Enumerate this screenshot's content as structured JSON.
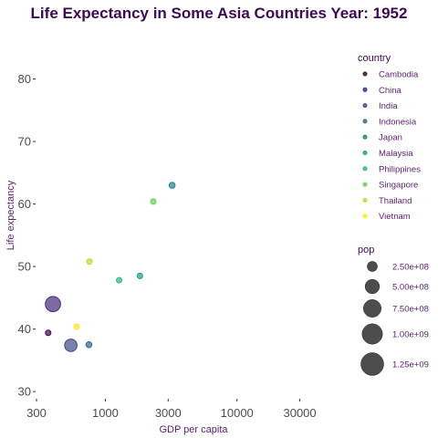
{
  "chart_data": {
    "type": "scatter",
    "title": "Life Expectancy in Some Asia Countries Year: 1952",
    "xlabel": "GDP per capita",
    "ylabel": "Life expectancy",
    "x_scale": "log10",
    "xlim": [
      300,
      60000
    ],
    "ylim": [
      29,
      83
    ],
    "x_ticks": [
      300,
      1000,
      3000,
      10000,
      30000
    ],
    "x_tick_labels": [
      "300",
      "1000",
      "3000",
      "10000",
      "30000"
    ],
    "y_ticks": [
      30,
      40,
      50,
      60,
      70,
      80
    ],
    "y_tick_labels": [
      "30",
      "40",
      "50",
      "60",
      "70",
      "80"
    ],
    "grid": false,
    "legend_placement": "right",
    "color_legend": {
      "title": "country",
      "entries": [
        {
          "name": "Cambodia",
          "color": "#440154"
        },
        {
          "name": "China",
          "color": "#482878"
        },
        {
          "name": "India",
          "color": "#3e4a89"
        },
        {
          "name": "Indonesia",
          "color": "#31688e"
        },
        {
          "name": "Japan",
          "color": "#26828e"
        },
        {
          "name": "Malaysia",
          "color": "#1f9e89"
        },
        {
          "name": "Philippines",
          "color": "#35b779"
        },
        {
          "name": "Singapore",
          "color": "#6ece58"
        },
        {
          "name": "Thailand",
          "color": "#b5de2b"
        },
        {
          "name": "Vietnam",
          "color": "#fde725"
        }
      ]
    },
    "size_legend": {
      "title": "pop",
      "entries": [
        {
          "value": 250000000,
          "label": "2.50e+08"
        },
        {
          "value": 500000000,
          "label": "5.00e+08"
        },
        {
          "value": 750000000,
          "label": "7.50e+08"
        },
        {
          "value": 1000000000,
          "label": "1.00e+09"
        },
        {
          "value": 1250000000,
          "label": "1.25e+09"
        }
      ]
    },
    "points": [
      {
        "country": "Cambodia",
        "gdp": 368,
        "life": 39.4,
        "pop": 4690000
      },
      {
        "country": "China",
        "gdp": 400,
        "life": 44.0,
        "pop": 556000000
      },
      {
        "country": "India",
        "gdp": 547,
        "life": 37.4,
        "pop": 372000000
      },
      {
        "country": "Indonesia",
        "gdp": 750,
        "life": 37.5,
        "pop": 82000000
      },
      {
        "country": "Japan",
        "gdp": 3217,
        "life": 63.0,
        "pop": 86000000
      },
      {
        "country": "Malaysia",
        "gdp": 1831,
        "life": 48.5,
        "pop": 6750000
      },
      {
        "country": "Philippines",
        "gdp": 1273,
        "life": 47.8,
        "pop": 22400000
      },
      {
        "country": "Singapore",
        "gdp": 2315,
        "life": 60.4,
        "pop": 1130000
      },
      {
        "country": "Thailand",
        "gdp": 757,
        "life": 50.8,
        "pop": 21300000
      },
      {
        "country": "Vietnam",
        "gdp": 605,
        "life": 40.4,
        "pop": 26200000
      }
    ]
  }
}
